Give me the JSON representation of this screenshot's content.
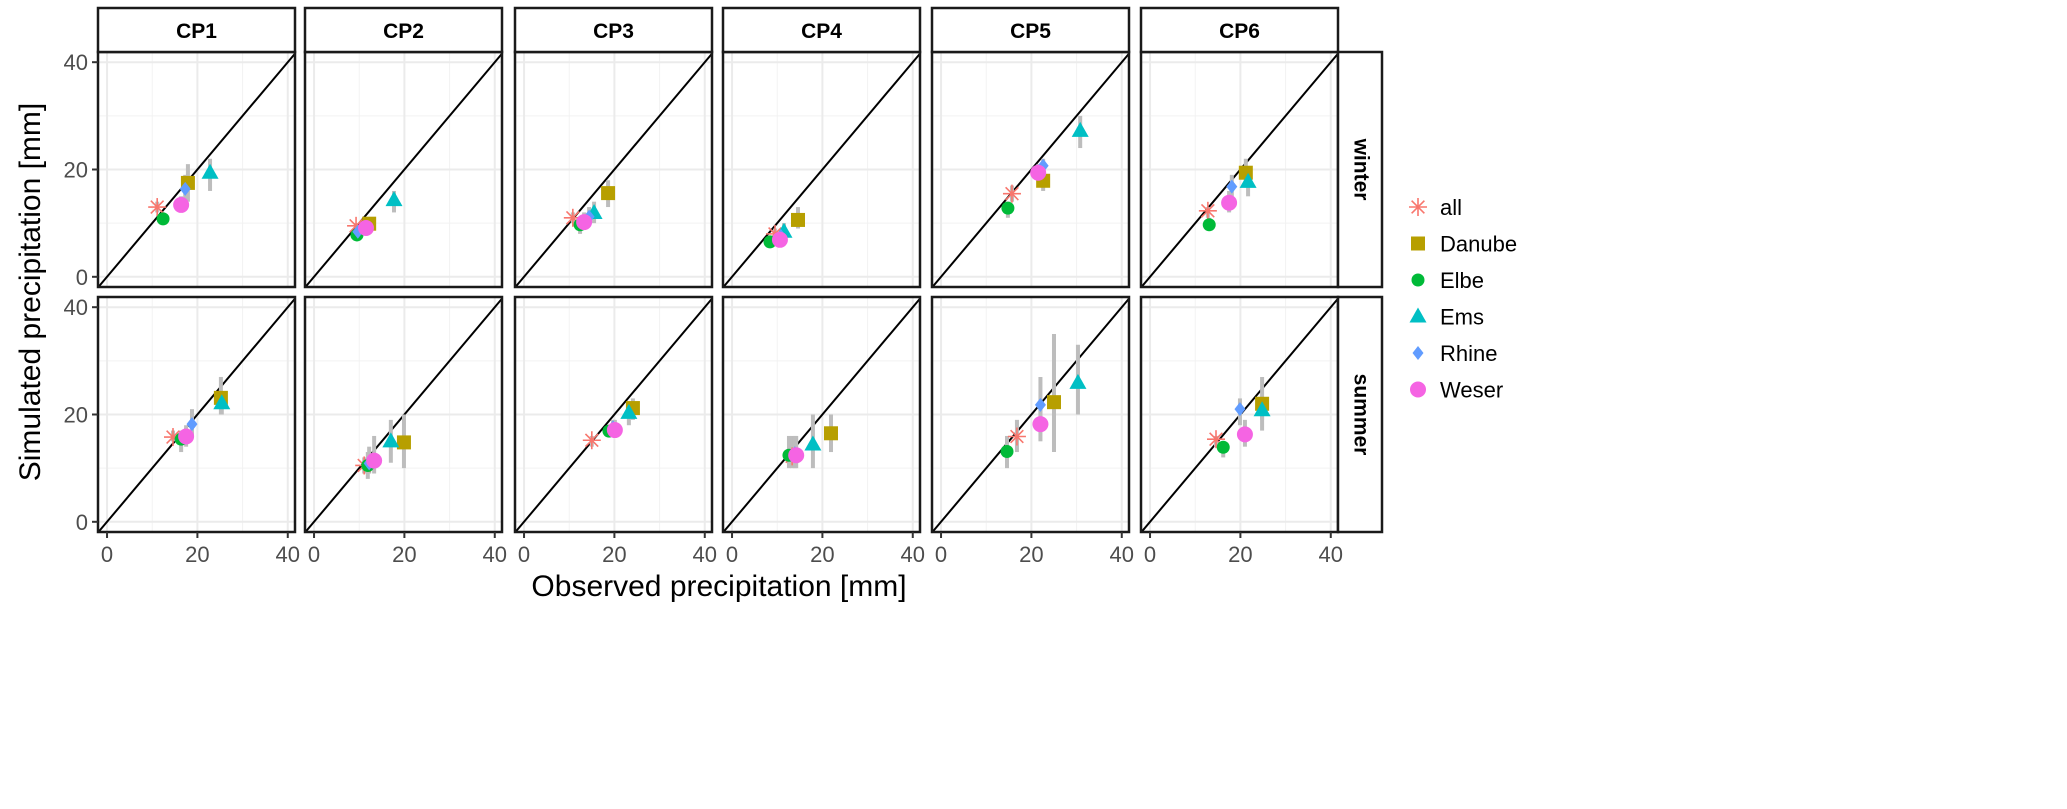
{
  "chart_data": {
    "type": "scatter",
    "xlabel": "Observed precipitation [mm]",
    "ylabel": "Simulated precipitation [mm]",
    "xlim": [
      -2,
      41.6
    ],
    "ylim": [
      -1.9,
      41.9
    ],
    "ticks": [
      0,
      20,
      40
    ],
    "tick_labels": [
      "0",
      "20",
      "40"
    ],
    "columns": [
      "CP1",
      "CP2",
      "CP3",
      "CP4",
      "CP5",
      "CP6"
    ],
    "rows": [
      "winter",
      "summer"
    ],
    "grid": true,
    "reference_line": "y = x",
    "legend_position": "right",
    "series": [
      {
        "name": "all",
        "shape": "asterisk",
        "color": "#F8766D"
      },
      {
        "name": "Danube",
        "shape": "square",
        "color": "#B79F00"
      },
      {
        "name": "Elbe",
        "shape": "circle",
        "color": "#00BA38"
      },
      {
        "name": "Ems",
        "shape": "triangle",
        "color": "#00BFC4"
      },
      {
        "name": "Rhine",
        "shape": "diamond",
        "color": "#619CFF"
      },
      {
        "name": "Weser",
        "shape": "circle-large",
        "color": "#F564E3"
      }
    ],
    "points": {
      "winter": {
        "CP1": {
          "all": [
            11.1,
            13.0,
            12,
            14
          ],
          "Danube": [
            17.9,
            17.5,
            14,
            21
          ],
          "Elbe": [
            12.4,
            10.8,
            10,
            12
          ],
          "Ems": [
            22.8,
            19.4,
            16,
            22
          ],
          "Rhine": [
            17.3,
            16.4,
            14,
            19
          ],
          "Weser": [
            16.4,
            13.4,
            12,
            15
          ]
        },
        "CP2": {
          "all": [
            9.3,
            9.5,
            9,
            10
          ],
          "Danube": [
            12.2,
            9.9,
            9,
            11
          ],
          "Elbe": [
            9.5,
            7.8,
            7,
            9
          ],
          "Ems": [
            17.7,
            14.3,
            12,
            16
          ],
          "Rhine": [
            9.7,
            8.4,
            8,
            9
          ],
          "Weser": [
            11.5,
            9.1,
            8,
            10
          ]
        },
        "CP3": {
          "all": [
            10.8,
            11.0,
            10,
            12
          ],
          "Danube": [
            18.6,
            15.6,
            13,
            18
          ],
          "Elbe": [
            12.4,
            9.7,
            8,
            11
          ],
          "Ems": [
            15.5,
            11.9,
            10,
            14
          ],
          "Rhine": [
            14.4,
            11.2,
            10,
            13
          ],
          "Weser": [
            13.3,
            10.2,
            9,
            12
          ]
        },
        "CP4": {
          "all": [
            9.5,
            8.0,
            7,
            9
          ],
          "Danube": [
            14.6,
            10.6,
            9,
            13
          ],
          "Elbe": [
            8.4,
            6.5,
            6,
            7
          ],
          "Ems": [
            11.5,
            8.4,
            7,
            10
          ],
          "Rhine": [
            10.8,
            7.6,
            7,
            9
          ],
          "Weser": [
            10.6,
            6.9,
            6,
            8
          ]
        },
        "CP5": {
          "all": [
            15.7,
            15.5,
            14,
            17
          ],
          "Danube": [
            22.6,
            17.9,
            16,
            20
          ],
          "Elbe": [
            14.8,
            12.8,
            11,
            14
          ],
          "Ems": [
            30.8,
            27.2,
            24,
            30
          ],
          "Rhine": [
            22.6,
            20.7,
            19,
            22
          ],
          "Weser": [
            21.5,
            19.4,
            18,
            21
          ]
        },
        "CP6": {
          "all": [
            12.8,
            12.3,
            11,
            13
          ],
          "Danube": [
            21.2,
            19.4,
            17,
            22
          ],
          "Elbe": [
            13.1,
            9.7,
            9,
            11
          ],
          "Ems": [
            21.7,
            17.7,
            15,
            20
          ],
          "Rhine": [
            18.1,
            16.8,
            15,
            19
          ],
          "Weser": [
            17.5,
            13.8,
            12,
            16
          ]
        }
      },
      "summer": {
        "CP1": {
          "all": [
            14.6,
            15.8,
            15,
            17
          ],
          "Danube": [
            25.2,
            23.1,
            20,
            27
          ],
          "Elbe": [
            16.4,
            15.4,
            13,
            17
          ],
          "Ems": [
            25.4,
            22.1,
            20,
            24
          ],
          "Rhine": [
            18.8,
            18.2,
            16,
            21
          ],
          "Weser": [
            17.5,
            15.9,
            14,
            18
          ]
        },
        "CP2": {
          "all": [
            11.1,
            10.5,
            9,
            12
          ],
          "Danube": [
            19.9,
            14.8,
            10,
            20
          ],
          "Elbe": [
            11.9,
            10.5,
            8,
            13
          ],
          "Ems": [
            17.0,
            15.0,
            11,
            19
          ],
          "Rhine": [
            12.2,
            10.9,
            9,
            14
          ],
          "Weser": [
            13.3,
            11.4,
            9,
            16
          ]
        },
        "CP3": {
          "all": [
            15.0,
            15.2,
            14,
            16
          ],
          "Danube": [
            24.1,
            21.2,
            19,
            23
          ],
          "Elbe": [
            18.8,
            16.9,
            16,
            18
          ],
          "Ems": [
            23.2,
            20.3,
            18,
            22
          ],
          "Rhine": [
            19.7,
            17.6,
            16,
            19
          ],
          "Weser": [
            20.1,
            17.1,
            16,
            19
          ]
        },
        "CP4": {
          "all": [
            13.3,
            12.2,
            10,
            16
          ],
          "Danube": [
            21.9,
            16.5,
            13,
            20
          ],
          "Elbe": [
            12.6,
            12.4,
            10,
            16
          ],
          "Ems": [
            17.9,
            14.4,
            10,
            20
          ],
          "Rhine": [
            13.9,
            12.8,
            10,
            16
          ],
          "Weser": [
            14.2,
            12.4,
            10,
            16
          ]
        },
        "CP5": {
          "all": [
            16.8,
            15.9,
            13,
            19
          ],
          "Danube": [
            25.0,
            22.3,
            13,
            35
          ],
          "Elbe": [
            14.6,
            13.1,
            10,
            16
          ],
          "Ems": [
            30.3,
            25.9,
            20,
            33
          ],
          "Rhine": [
            22.0,
            21.8,
            17,
            27
          ],
          "Weser": [
            22.0,
            18.2,
            15,
            22
          ]
        },
        "CP6": {
          "all": [
            14.6,
            15.4,
            14,
            16
          ],
          "Danube": [
            24.8,
            22.0,
            19,
            27
          ],
          "Elbe": [
            16.2,
            13.9,
            12,
            15
          ],
          "Ems": [
            24.8,
            20.8,
            17,
            23
          ],
          "Rhine": [
            19.9,
            21.0,
            18,
            23
          ],
          "Weser": [
            21.0,
            16.3,
            14,
            19
          ]
        }
      }
    }
  }
}
